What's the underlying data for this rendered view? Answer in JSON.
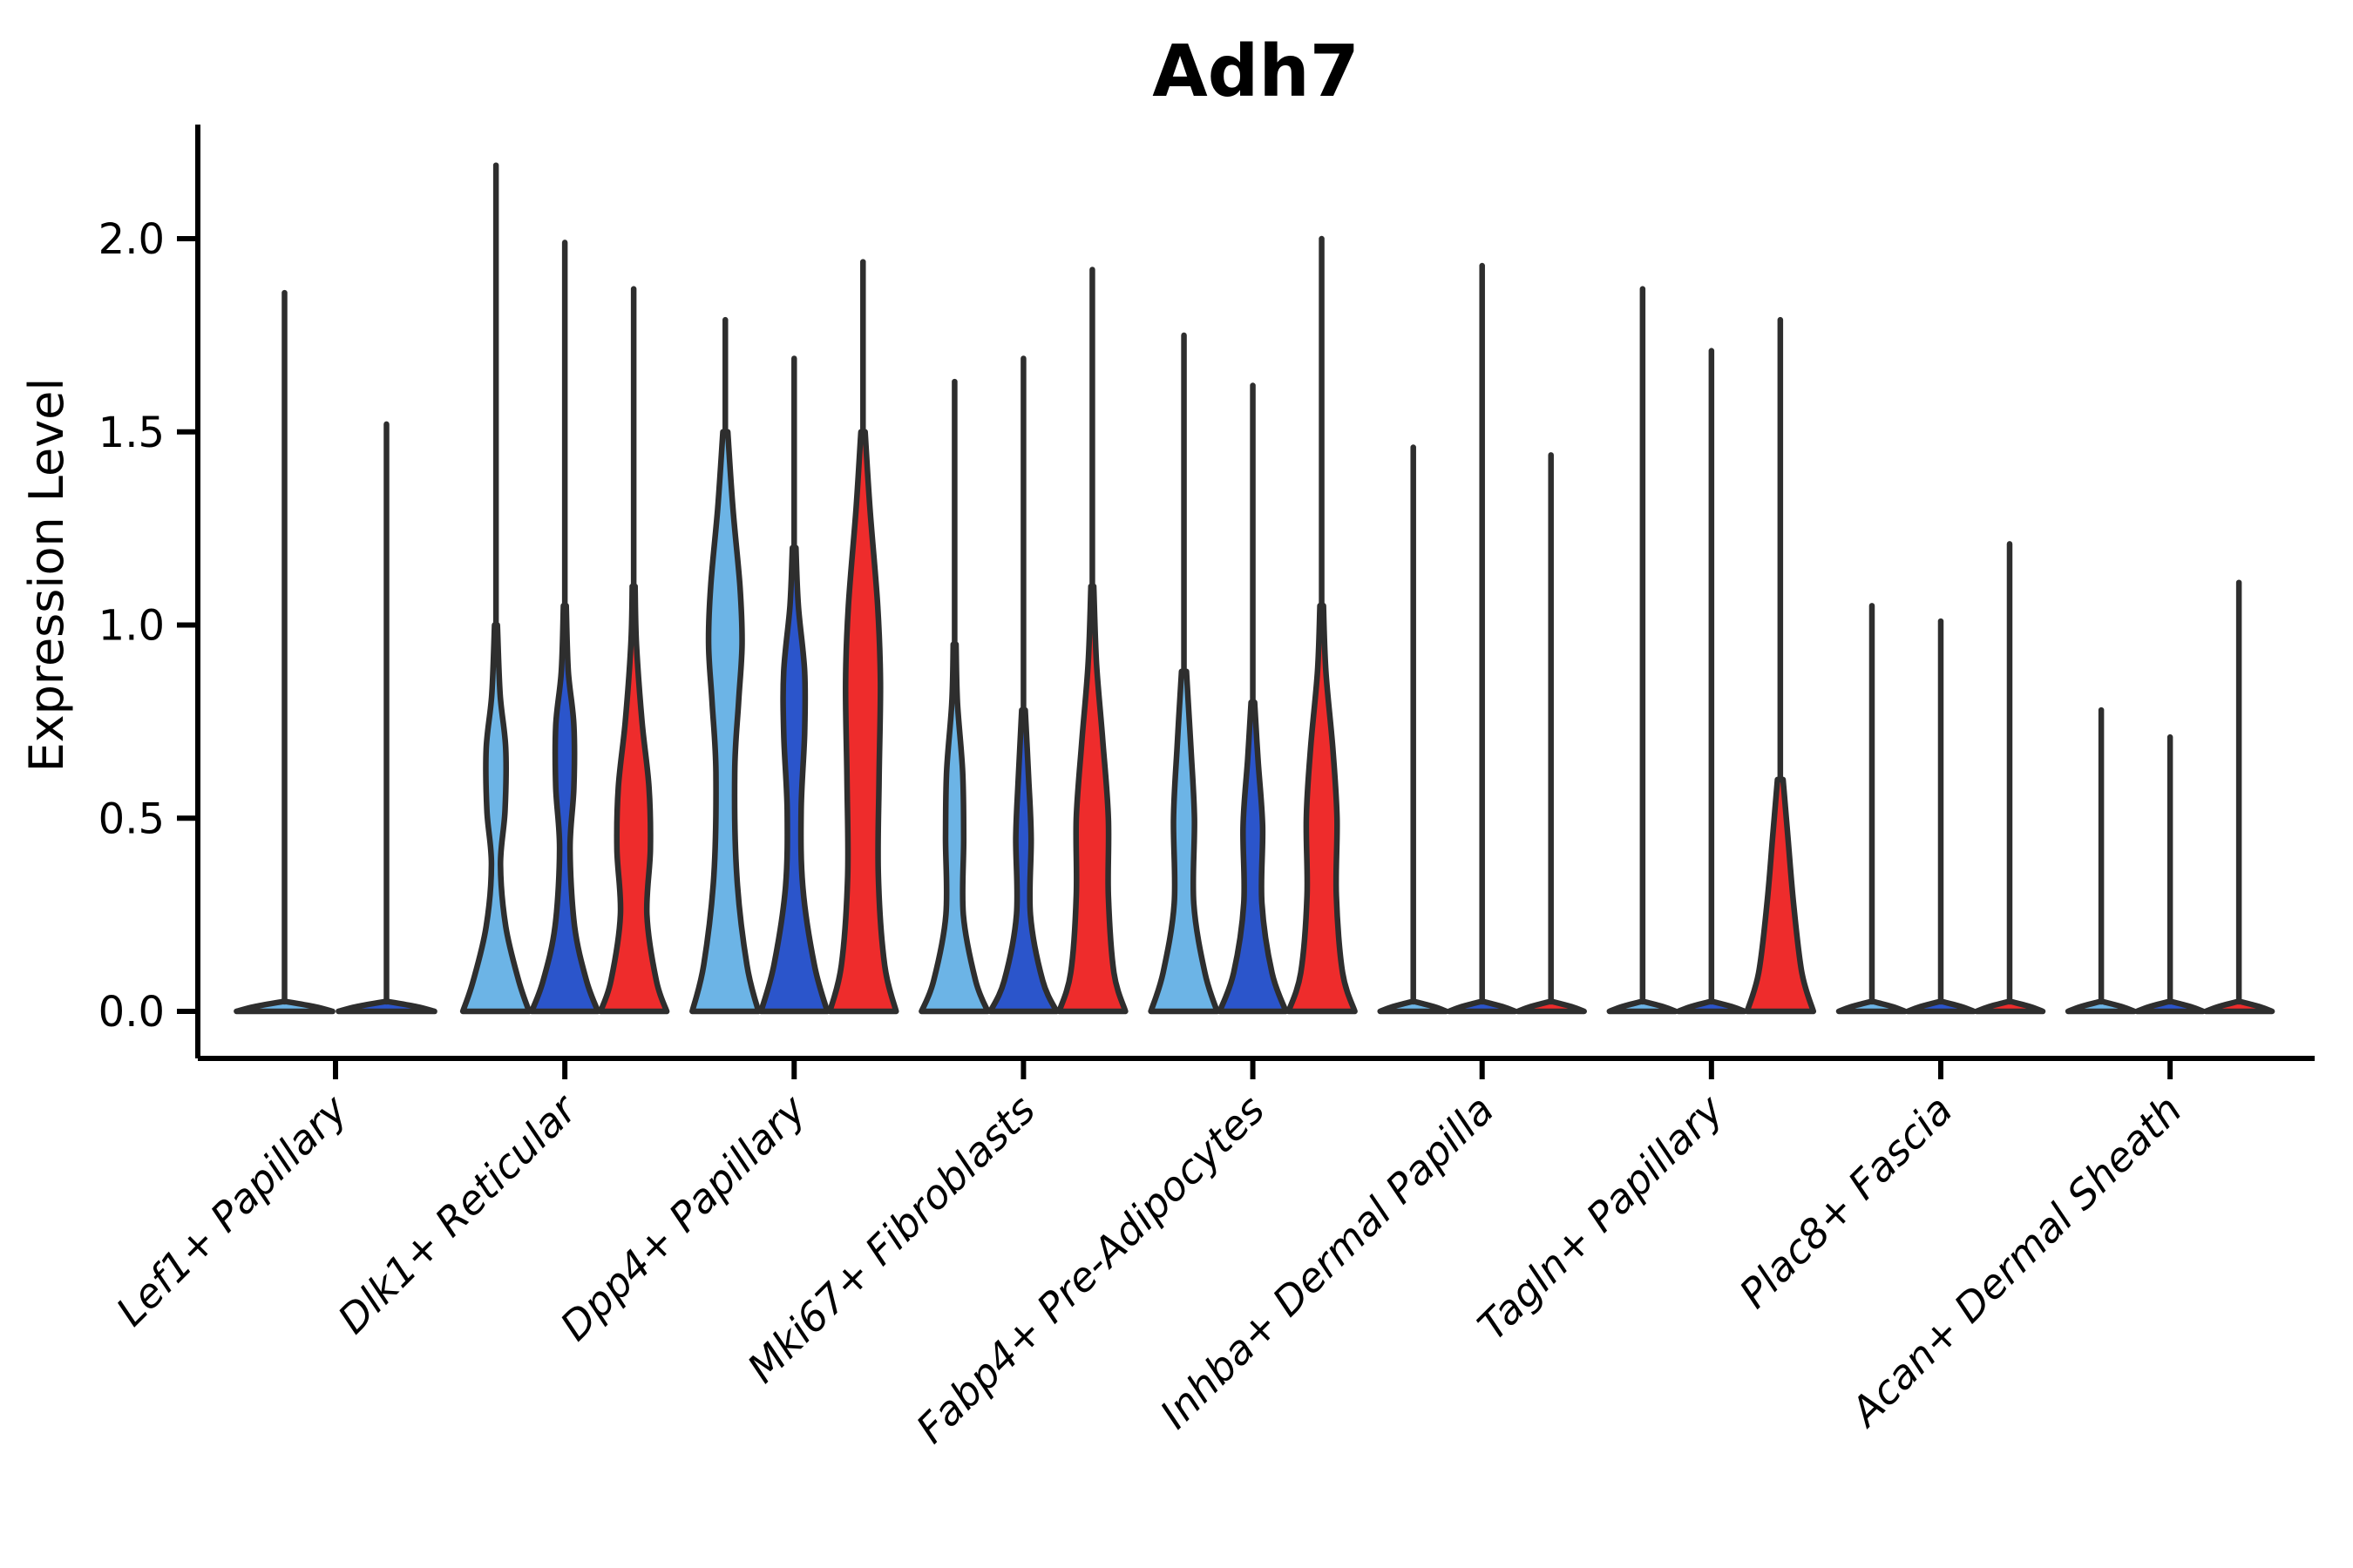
{
  "chart_data": {
    "type": "violin",
    "title": "Adh7",
    "ylabel": "Expression Level",
    "xlabel": "",
    "ylim": [
      -0.12,
      2.3
    ],
    "grid": false,
    "legend_position": "none",
    "ytick_values": [
      0.0,
      0.5,
      1.0,
      1.5,
      2.0
    ],
    "ytick_labels": [
      "0.0",
      "0.5",
      "1.0",
      "1.5",
      "2.0"
    ],
    "categories": [
      "Lef1+ Papillary",
      "Dlk1+ Reticular",
      "Dpp4+ Papillary",
      "Mki67+ Fibroblasts",
      "Fabp4+ Pre-Adipocytes",
      "Inhba+ Dermal Papilla",
      "Tagln+ Papillary",
      "Plac8+ Fascia",
      "Acan+ Dermal Sheath"
    ],
    "palette": {
      "series1": "#6CB4E6",
      "series2": "#2B55CB",
      "series3": "#EE2C2C"
    },
    "outline_color": "#2E2E2E",
    "groups": [
      {
        "category": "Lef1+ Papillary",
        "violins": [
          {
            "series": 1,
            "peak": 1.86,
            "profile": [
              [
                0,
                0.95
              ],
              [
                0.012,
                0.6
              ],
              [
                0.025,
                0.05
              ]
            ]
          },
          {
            "series": 2,
            "peak": 1.52,
            "profile": [
              [
                0,
                0.95
              ],
              [
                0.012,
                0.6
              ],
              [
                0.025,
                0.05
              ]
            ]
          }
        ]
      },
      {
        "category": "Dlk1+ Reticular",
        "violins": [
          {
            "series": 1,
            "peak": 2.19,
            "profile": [
              [
                0,
                0.95
              ],
              [
                0.08,
                0.65
              ],
              [
                0.22,
                0.28
              ],
              [
                0.38,
                0.13
              ],
              [
                0.52,
                0.26
              ],
              [
                0.68,
                0.28
              ],
              [
                0.82,
                0.12
              ],
              [
                1.0,
                0.04
              ]
            ]
          },
          {
            "series": 2,
            "peak": 1.99,
            "profile": [
              [
                0,
                0.95
              ],
              [
                0.08,
                0.62
              ],
              [
                0.22,
                0.28
              ],
              [
                0.42,
                0.15
              ],
              [
                0.58,
                0.26
              ],
              [
                0.74,
                0.26
              ],
              [
                0.88,
                0.1
              ],
              [
                1.05,
                0.04
              ]
            ]
          },
          {
            "series": 3,
            "peak": 1.87,
            "profile": [
              [
                0,
                0.95
              ],
              [
                0.08,
                0.65
              ],
              [
                0.25,
                0.38
              ],
              [
                0.42,
                0.48
              ],
              [
                0.58,
                0.44
              ],
              [
                0.75,
                0.24
              ],
              [
                0.95,
                0.08
              ],
              [
                1.1,
                0.04
              ]
            ]
          }
        ]
      },
      {
        "category": "Dpp4+ Papillary",
        "violins": [
          {
            "series": 1,
            "peak": 1.79,
            "profile": [
              [
                0,
                0.95
              ],
              [
                0.12,
                0.62
              ],
              [
                0.35,
                0.33
              ],
              [
                0.62,
                0.27
              ],
              [
                0.8,
                0.38
              ],
              [
                0.95,
                0.48
              ],
              [
                1.1,
                0.42
              ],
              [
                1.3,
                0.22
              ],
              [
                1.5,
                0.07
              ]
            ]
          },
          {
            "series": 2,
            "peak": 1.69,
            "profile": [
              [
                0,
                0.95
              ],
              [
                0.12,
                0.58
              ],
              [
                0.32,
                0.25
              ],
              [
                0.52,
                0.2
              ],
              [
                0.72,
                0.3
              ],
              [
                0.88,
                0.3
              ],
              [
                1.05,
                0.12
              ],
              [
                1.2,
                0.05
              ]
            ]
          },
          {
            "series": 3,
            "peak": 1.94,
            "profile": [
              [
                0,
                0.95
              ],
              [
                0.12,
                0.62
              ],
              [
                0.35,
                0.44
              ],
              [
                0.6,
                0.46
              ],
              [
                0.85,
                0.5
              ],
              [
                1.05,
                0.42
              ],
              [
                1.3,
                0.2
              ],
              [
                1.5,
                0.06
              ]
            ]
          }
        ]
      },
      {
        "category": "Mki67+ Fibroblasts",
        "violins": [
          {
            "series": 1,
            "peak": 1.63,
            "profile": [
              [
                0,
                0.95
              ],
              [
                0.08,
                0.6
              ],
              [
                0.25,
                0.25
              ],
              [
                0.45,
                0.26
              ],
              [
                0.62,
                0.23
              ],
              [
                0.8,
                0.08
              ],
              [
                0.95,
                0.04
              ]
            ]
          },
          {
            "series": 2,
            "peak": 1.69,
            "profile": [
              [
                0,
                0.95
              ],
              [
                0.08,
                0.55
              ],
              [
                0.25,
                0.2
              ],
              [
                0.45,
                0.22
              ],
              [
                0.6,
                0.15
              ],
              [
                0.78,
                0.05
              ]
            ]
          },
          {
            "series": 3,
            "peak": 1.92,
            "profile": [
              [
                0,
                0.95
              ],
              [
                0.1,
                0.62
              ],
              [
                0.3,
                0.46
              ],
              [
                0.5,
                0.46
              ],
              [
                0.7,
                0.3
              ],
              [
                0.9,
                0.12
              ],
              [
                1.1,
                0.04
              ]
            ]
          }
        ]
      },
      {
        "category": "Fabp4+ Pre-Adipocytes",
        "violins": [
          {
            "series": 1,
            "peak": 1.75,
            "profile": [
              [
                0,
                0.95
              ],
              [
                0.1,
                0.6
              ],
              [
                0.28,
                0.28
              ],
              [
                0.5,
                0.3
              ],
              [
                0.68,
                0.2
              ],
              [
                0.88,
                0.07
              ]
            ]
          },
          {
            "series": 2,
            "peak": 1.62,
            "profile": [
              [
                0,
                0.95
              ],
              [
                0.1,
                0.55
              ],
              [
                0.28,
                0.26
              ],
              [
                0.48,
                0.28
              ],
              [
                0.65,
                0.15
              ],
              [
                0.8,
                0.05
              ]
            ]
          },
          {
            "series": 3,
            "peak": 2.0,
            "profile": [
              [
                0,
                0.95
              ],
              [
                0.1,
                0.6
              ],
              [
                0.3,
                0.42
              ],
              [
                0.5,
                0.44
              ],
              [
                0.68,
                0.32
              ],
              [
                0.88,
                0.12
              ],
              [
                1.05,
                0.05
              ]
            ]
          }
        ]
      },
      {
        "category": "Inhba+ Dermal Papilla",
        "violins": [
          {
            "series": 1,
            "peak": 1.46,
            "profile": [
              [
                0,
                0.95
              ],
              [
                0.012,
                0.6
              ],
              [
                0.025,
                0.05
              ]
            ]
          },
          {
            "series": 2,
            "peak": 1.93,
            "profile": [
              [
                0,
                0.95
              ],
              [
                0.012,
                0.6
              ],
              [
                0.025,
                0.05
              ]
            ]
          },
          {
            "series": 3,
            "peak": 1.44,
            "profile": [
              [
                0,
                0.95
              ],
              [
                0.012,
                0.6
              ],
              [
                0.025,
                0.05
              ]
            ]
          }
        ]
      },
      {
        "category": "Tagln+ Papillary",
        "violins": [
          {
            "series": 1,
            "peak": 1.87,
            "profile": [
              [
                0,
                0.95
              ],
              [
                0.012,
                0.6
              ],
              [
                0.025,
                0.05
              ]
            ]
          },
          {
            "series": 2,
            "peak": 1.71,
            "profile": [
              [
                0,
                0.95
              ],
              [
                0.012,
                0.6
              ],
              [
                0.025,
                0.05
              ]
            ]
          },
          {
            "series": 3,
            "peak": 1.79,
            "profile": [
              [
                0,
                0.95
              ],
              [
                0.1,
                0.62
              ],
              [
                0.28,
                0.38
              ],
              [
                0.45,
                0.22
              ],
              [
                0.6,
                0.08
              ]
            ]
          }
        ]
      },
      {
        "category": "Plac8+ Fascia",
        "violins": [
          {
            "series": 1,
            "peak": 1.05,
            "profile": [
              [
                0,
                0.95
              ],
              [
                0.012,
                0.6
              ],
              [
                0.025,
                0.05
              ]
            ]
          },
          {
            "series": 2,
            "peak": 1.01,
            "profile": [
              [
                0,
                0.95
              ],
              [
                0.012,
                0.6
              ],
              [
                0.025,
                0.05
              ]
            ]
          },
          {
            "series": 3,
            "peak": 1.21,
            "profile": [
              [
                0,
                0.95
              ],
              [
                0.012,
                0.6
              ],
              [
                0.025,
                0.05
              ]
            ]
          }
        ]
      },
      {
        "category": "Acan+ Dermal Sheath",
        "violins": [
          {
            "series": 1,
            "peak": 0.78,
            "profile": [
              [
                0,
                0.95
              ],
              [
                0.012,
                0.6
              ],
              [
                0.025,
                0.05
              ]
            ]
          },
          {
            "series": 2,
            "peak": 0.71,
            "profile": [
              [
                0,
                0.95
              ],
              [
                0.012,
                0.6
              ],
              [
                0.025,
                0.05
              ]
            ]
          },
          {
            "series": 3,
            "peak": 1.11,
            "profile": [
              [
                0,
                0.95
              ],
              [
                0.012,
                0.6
              ],
              [
                0.025,
                0.05
              ]
            ]
          }
        ]
      }
    ]
  }
}
